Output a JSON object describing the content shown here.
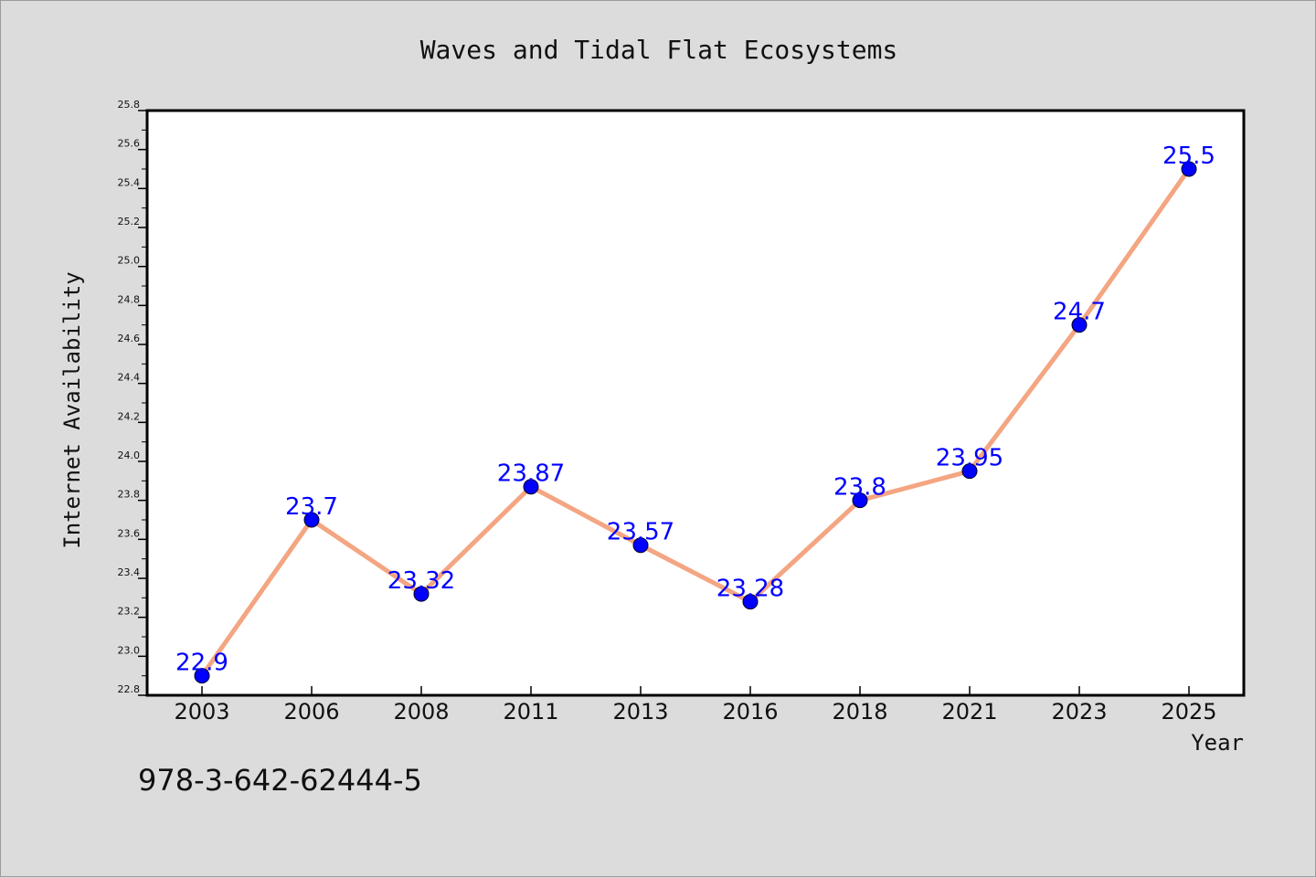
{
  "chart_data": {
    "type": "line",
    "title": "Waves and Tidal Flat Ecosystems",
    "xlabel": "Year",
    "ylabel": "Internet Availability",
    "categories": [
      "2003",
      "2006",
      "2008",
      "2011",
      "2013",
      "2016",
      "2018",
      "2021",
      "2023",
      "2025"
    ],
    "series": [
      {
        "values": [
          22.9,
          23.7,
          23.32,
          23.87,
          23.57,
          23.28,
          23.8,
          23.95,
          24.7,
          25.5
        ]
      }
    ],
    "data_labels": [
      "22.9",
      "23.7",
      "23.32",
      "23.87",
      "23.57",
      "23.28",
      "23.8",
      "23.95",
      "24.7",
      "25.5"
    ],
    "ylim": [
      22.8,
      25.8
    ],
    "yticks": [
      "22.8",
      "23.0",
      "23.2",
      "23.4",
      "23.6",
      "23.8",
      "24.0",
      "24.2",
      "24.4",
      "24.6",
      "24.8",
      "25.0",
      "25.2",
      "25.4",
      "25.6",
      "25.8"
    ],
    "grid": false,
    "legend": "none",
    "colors": {
      "line": "#f4a582",
      "marker": "#0000ff",
      "label": "#0000ff",
      "background": "#dcdcdc",
      "plot_background": "#ffffff"
    }
  },
  "footer": {
    "isbn": "978-3-642-62444-5"
  }
}
